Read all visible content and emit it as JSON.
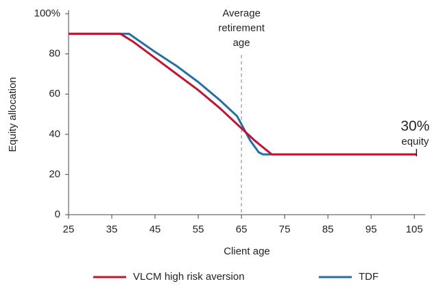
{
  "chart_data": {
    "type": "line",
    "xlabel": "Client age",
    "ylabel": "Equity allocation",
    "xlim": [
      25,
      107.5
    ],
    "xticks": [
      25,
      35,
      45,
      55,
      65,
      75,
      85,
      95,
      105
    ],
    "ylim": [
      0,
      100
    ],
    "yticks": [
      0,
      20,
      40,
      60,
      80,
      {
        "value": 100,
        "label": "100%"
      }
    ],
    "retirement_label": [
      "Average",
      "retirement",
      "age"
    ],
    "retirement_age": 65,
    "end_label": [
      "30%",
      "equity"
    ],
    "series": [
      {
        "name": "VLCM high risk aversion",
        "color": "#c8102e",
        "x": [
          25,
          37,
          40,
          45,
          50,
          55,
          60,
          63,
          65,
          68,
          72,
          105.5
        ],
        "values": [
          90,
          90,
          86,
          78,
          70,
          62,
          53,
          47,
          43,
          37,
          30,
          30
        ]
      },
      {
        "name": "TDF",
        "color": "#1f6fa8",
        "x": [
          25,
          39,
          41,
          45,
          50,
          55,
          60,
          64,
          65,
          67,
          69,
          70,
          105.5
        ],
        "values": [
          90,
          90,
          87,
          81,
          74,
          66,
          57,
          49,
          45,
          37,
          31,
          30,
          30
        ]
      }
    ]
  }
}
